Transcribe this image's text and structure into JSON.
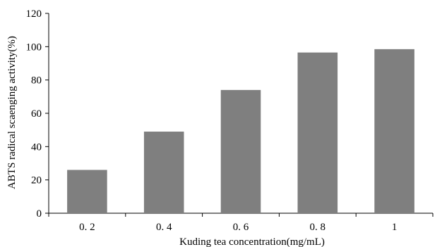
{
  "chart_data": {
    "type": "bar",
    "categories": [
      "0. 2",
      "0. 4",
      "0. 6",
      "0. 8",
      "1"
    ],
    "values": [
      26,
      49,
      74,
      96.5,
      98.5
    ],
    "xlabel": "Kuding tea concentration(mg/mL)",
    "ylabel": "ABTS radical scaenging activity(%)",
    "ylim": [
      0,
      120
    ],
    "yticks": [
      "0",
      "20",
      "40",
      "60",
      "80",
      "100",
      "120"
    ],
    "grid": false,
    "legend": "none",
    "bar_color": "#7f7f7f"
  }
}
